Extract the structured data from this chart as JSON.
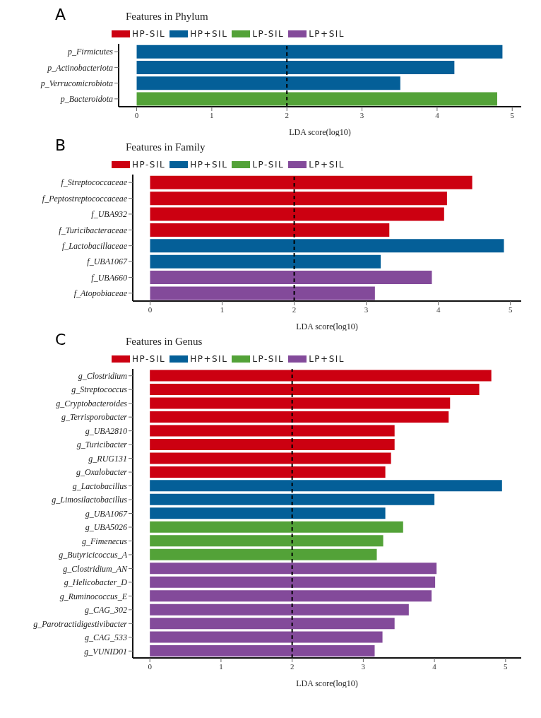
{
  "chart_data": [
    {
      "type": "bar",
      "orientation": "horizontal",
      "stacked": true,
      "title": "Features in Phylum",
      "annotations": [
        "A"
      ],
      "xlabel": "LDA score(log10)",
      "categories": [
        "p_Firmicutes",
        "p_Actinobacteriota",
        "p_Verrucomicrobiota",
        "p_Bacteroidota"
      ],
      "series": [
        {
          "name": "HP-SIL",
          "color": "#cc0011",
          "values": [
            null,
            null,
            null,
            null
          ]
        },
        {
          "name": "HP+SIL",
          "color": "#045f98",
          "values": [
            4.87,
            4.23,
            3.51,
            null
          ]
        },
        {
          "name": "LP-SIL",
          "color": "#53a238",
          "values": [
            null,
            null,
            null,
            4.8
          ]
        },
        {
          "name": "LP+SIL",
          "color": "#834a9a",
          "values": [
            null,
            null,
            null,
            null
          ]
        }
      ],
      "xlim": [
        -0.24,
        5.12
      ],
      "xticks": [
        0,
        1,
        2,
        3,
        4,
        5
      ],
      "ref_lines": [
        {
          "axis": "x",
          "value": 2,
          "line_style": "dashed",
          "color": "#000000"
        }
      ],
      "legend": "top",
      "grid": false
    },
    {
      "type": "bar",
      "orientation": "horizontal",
      "stacked": true,
      "title": "Features in Family",
      "annotations": [
        "B"
      ],
      "xlabel": "LDA score(log10)",
      "categories": [
        "f_Streptococcaceae",
        "f_Peptostreptococcaceae",
        "f_UBA932",
        "f_Turicibacteraceae",
        "f_Lactobacillaceae",
        "f_UBA1067",
        "f_UBA660",
        "f_Atopobiaceae"
      ],
      "series": [
        {
          "name": "HP-SIL",
          "color": "#cc0011",
          "values": [
            4.47,
            4.12,
            4.08,
            3.32,
            null,
            null,
            null,
            null
          ]
        },
        {
          "name": "HP+SIL",
          "color": "#045f98",
          "values": [
            null,
            null,
            null,
            null,
            4.91,
            3.2,
            null,
            null
          ]
        },
        {
          "name": "LP-SIL",
          "color": "#53a238",
          "values": [
            null,
            null,
            null,
            null,
            null,
            null,
            null,
            null
          ]
        },
        {
          "name": "LP+SIL",
          "color": "#834a9a",
          "values": [
            null,
            null,
            null,
            null,
            null,
            null,
            3.91,
            3.12
          ]
        }
      ],
      "xlim": [
        -0.24,
        5.15
      ],
      "xticks": [
        0,
        1,
        2,
        3,
        4,
        5
      ],
      "ref_lines": [
        {
          "axis": "x",
          "value": 2,
          "line_style": "dashed",
          "color": "#000000"
        }
      ],
      "legend": "top",
      "grid": false
    },
    {
      "type": "bar",
      "orientation": "horizontal",
      "stacked": true,
      "title": "Features in Genus",
      "annotations": [
        "C"
      ],
      "xlabel": "LDA score(log10)",
      "categories": [
        "g_Clostridium",
        "g_Streptococcus",
        "g_Cryptobacteroides",
        "g_Terrisporobacter",
        "g_UBA2810",
        "g_Turicibacter",
        "g_RUG131",
        "g_Oxalobacter",
        "g_Lactobacillus",
        "g_Limosilactobacillus",
        "g_UBA1067",
        "g_UBA5026",
        "g_Fimenecus",
        "g_Butyricicoccus_A",
        "g_Clostridium_AN",
        "g_Helicobacter_D",
        "g_Ruminococcus_E",
        "g_CAG_302",
        "g_Parotractidigestivibacter",
        "g_CAG_533",
        "g_VUNID01"
      ],
      "series": [
        {
          "name": "HP-SIL",
          "color": "#cc0011",
          "values": [
            4.8,
            4.63,
            4.22,
            4.2,
            3.44,
            3.44,
            3.39,
            3.31,
            null,
            null,
            null,
            null,
            null,
            null,
            null,
            null,
            null,
            null,
            null,
            null,
            null
          ]
        },
        {
          "name": "HP+SIL",
          "color": "#045f98",
          "values": [
            null,
            null,
            null,
            null,
            null,
            null,
            null,
            null,
            4.95,
            4.0,
            3.31,
            null,
            null,
            null,
            null,
            null,
            null,
            null,
            null,
            null,
            null
          ]
        },
        {
          "name": "LP-SIL",
          "color": "#53a238",
          "values": [
            null,
            null,
            null,
            null,
            null,
            null,
            null,
            null,
            null,
            null,
            null,
            3.56,
            3.28,
            3.19,
            null,
            null,
            null,
            null,
            null,
            null,
            null
          ]
        },
        {
          "name": "LP+SIL",
          "color": "#834a9a",
          "values": [
            null,
            null,
            null,
            null,
            null,
            null,
            null,
            null,
            null,
            null,
            null,
            null,
            null,
            null,
            4.03,
            4.01,
            3.96,
            3.64,
            3.44,
            3.27,
            3.16
          ]
        }
      ],
      "xlim": [
        -0.24,
        5.22
      ],
      "xticks": [
        0,
        1,
        2,
        3,
        4,
        5
      ],
      "ref_lines": [
        {
          "axis": "x",
          "value": 2,
          "line_style": "dashed",
          "color": "#000000"
        }
      ],
      "legend": "top",
      "grid": false
    }
  ]
}
